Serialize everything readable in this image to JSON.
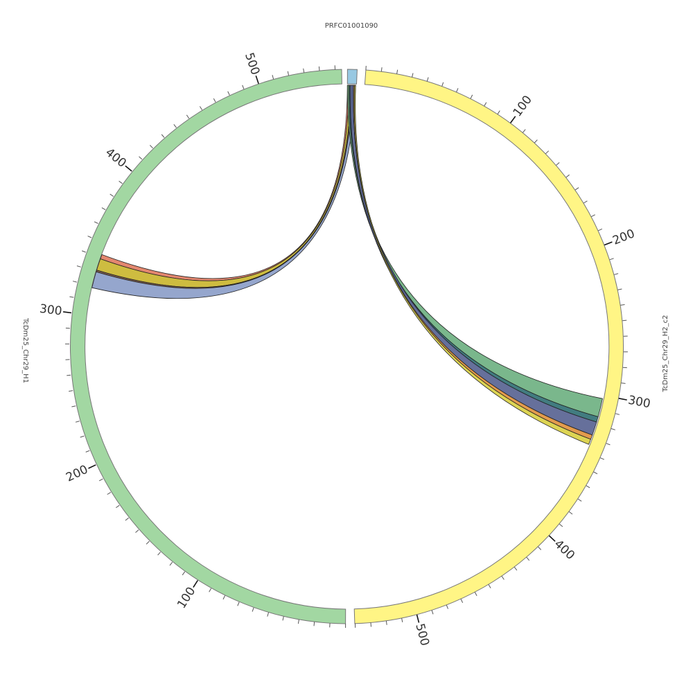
{
  "diagram": {
    "type": "circos",
    "contigs": [
      {
        "id": "left",
        "name": "TcDm25_Chr29_H1",
        "color": "#A2D7A2",
        "ticks": [
          100,
          200,
          300,
          400,
          500
        ]
      },
      {
        "id": "small",
        "name": "PRFC01001090",
        "color": "#98C8E2",
        "ticks": []
      },
      {
        "id": "right",
        "name": "TcDm25_Chr29_H2_c2",
        "color": "#FFF585",
        "ticks": [
          100,
          200,
          300,
          400,
          500
        ]
      }
    ],
    "links": [
      {
        "from": "PRFC01001090",
        "to": "TcDm25_Chr29_H1",
        "color": "#E07A5F"
      },
      {
        "from": "PRFC01001090",
        "to": "TcDm25_Chr29_H1",
        "color": "#C9B52B"
      },
      {
        "from": "PRFC01001090",
        "to": "TcDm25_Chr29_H1",
        "color": "#6B4A3A"
      },
      {
        "from": "PRFC01001090",
        "to": "TcDm25_Chr29_H1",
        "color": "#8A9CC8"
      },
      {
        "from": "PRFC01001090",
        "to": "TcDm25_Chr29_H2_c2",
        "color": "#6BAF7F"
      },
      {
        "from": "PRFC01001090",
        "to": "TcDm25_Chr29_H2_c2",
        "color": "#2E6E72"
      },
      {
        "from": "PRFC01001090",
        "to": "TcDm25_Chr29_H2_c2",
        "color": "#556090"
      },
      {
        "from": "PRFC01001090",
        "to": "TcDm25_Chr29_H2_c2",
        "color": "#E0903A"
      },
      {
        "from": "PRFC01001090",
        "to": "TcDm25_Chr29_H2_c2",
        "color": "#D9CF40"
      }
    ]
  }
}
